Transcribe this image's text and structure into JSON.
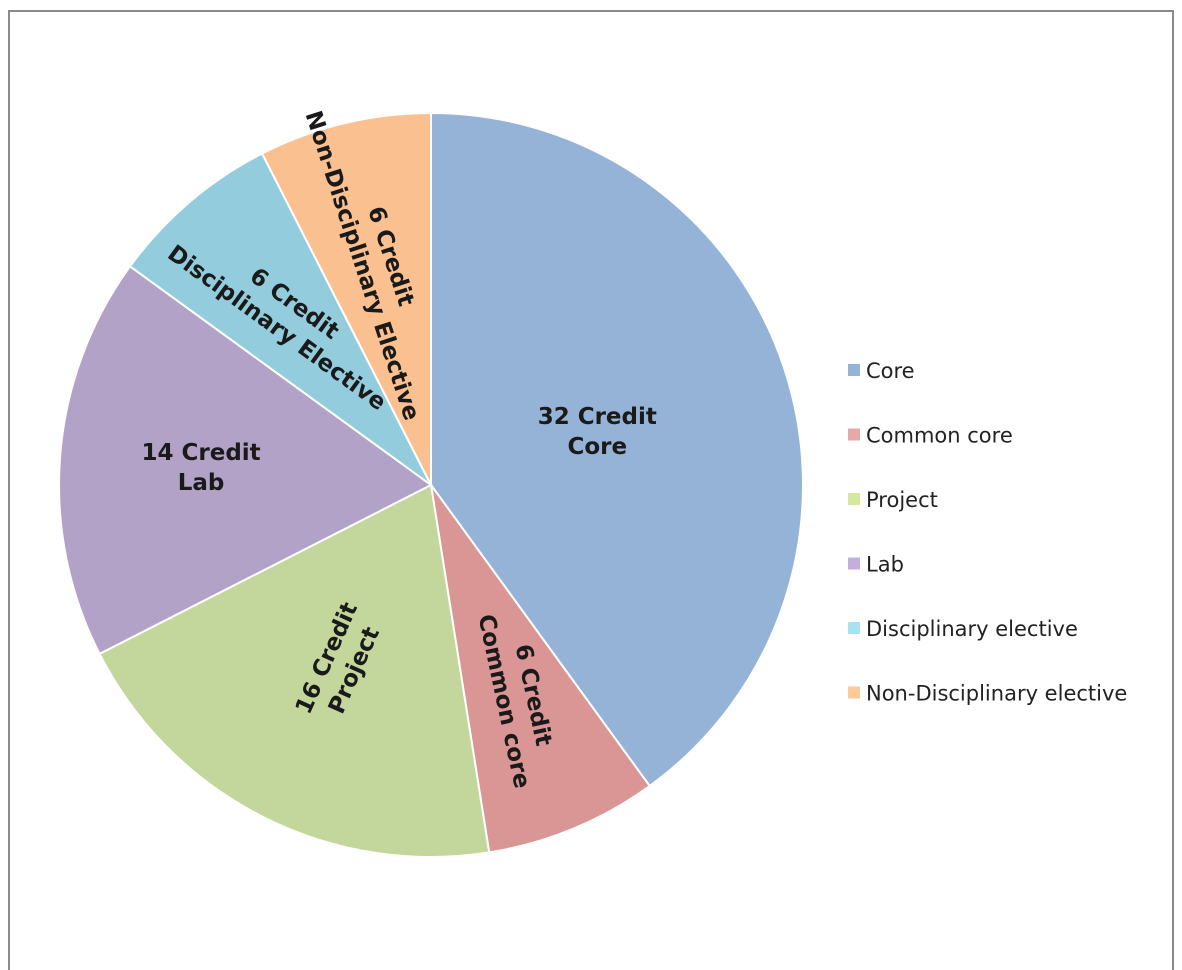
{
  "chart_data": {
    "type": "pie",
    "unit": "Credit",
    "slices": [
      {
        "name": "Core",
        "value": 32,
        "color": "#95B3D7",
        "label_lines": [
          "32 Credit",
          "Core"
        ]
      },
      {
        "name": "Common core",
        "value": 6,
        "color": "#D99694",
        "label_lines": [
          "6 Credit",
          "Common core"
        ]
      },
      {
        "name": "Project",
        "value": 16,
        "color": "#C3D69B",
        "label_lines": [
          "16 Credit",
          "Project"
        ]
      },
      {
        "name": "Lab",
        "value": 14,
        "color": "#B3A2C7",
        "label_lines": [
          "14 Credit",
          "Lab"
        ]
      },
      {
        "name": "Disciplinary elective",
        "value": 6,
        "color": "#93CDDD",
        "label_lines": [
          "6 Credit",
          "Disciplinary Elective"
        ]
      },
      {
        "name": "Non-Disciplinary elective",
        "value": 6,
        "color": "#FAC090",
        "label_lines": [
          "6 Credit",
          "Non-Disciplinary Elective"
        ]
      }
    ],
    "legend": {
      "position": "right",
      "items": [
        {
          "label": "Core",
          "color": "#95B3D7"
        },
        {
          "label": "Common core",
          "color": "#E6A9A7"
        },
        {
          "label": "Project",
          "color": "#D5E8A0"
        },
        {
          "label": "Lab",
          "color": "#C3B0DA"
        },
        {
          "label": "Disciplinary elective",
          "color": "#A6E3F0"
        },
        {
          "label": "Non-Disciplinary elective",
          "color": "#FBCB9A"
        }
      ]
    }
  }
}
